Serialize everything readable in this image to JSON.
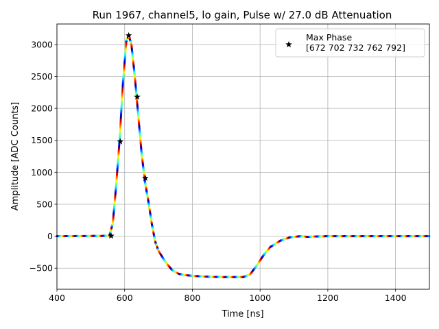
{
  "chart_data": {
    "type": "scatter",
    "title": "Run 1967, channel5, lo gain, Pulse w/ 27.0 dB Attenuation",
    "xlabel": "Time [ns]",
    "ylabel": "Amplitude [ADC Counts]",
    "xlim": [
      400,
      1500
    ],
    "ylim": [
      -830,
      3320
    ],
    "xticks": [
      400,
      600,
      800,
      1000,
      1200,
      1400
    ],
    "yticks": [
      -500,
      0,
      500,
      1000,
      1500,
      2000,
      2500,
      3000
    ],
    "grid": true,
    "legend_position": "top-right",
    "colormap": "jet",
    "pulse_series": {
      "style": "colored-dots",
      "x": [
        400,
        555,
        565,
        575,
        585,
        595,
        605,
        612,
        620,
        630,
        640,
        650,
        660,
        670,
        680,
        690,
        700,
        720,
        740,
        760,
        780,
        800,
        850,
        900,
        950,
        970,
        990,
        1010,
        1030,
        1060,
        1090,
        1120,
        1140,
        1160,
        1200,
        1300,
        1400,
        1500
      ],
      "y": [
        0,
        5,
        200,
        800,
        1500,
        2400,
        3050,
        3140,
        3000,
        2500,
        1900,
        1300,
        850,
        550,
        200,
        -80,
        -230,
        -400,
        -530,
        -590,
        -610,
        -620,
        -635,
        -640,
        -640,
        -600,
        -460,
        -300,
        -170,
        -70,
        -15,
        0,
        -10,
        -5,
        0,
        0,
        0,
        0
      ]
    },
    "series": [
      {
        "name": "Max Phase\n [672 702 732 762 792]",
        "marker": "star",
        "color": "#000000",
        "x": [
          560,
          587,
          612,
          637,
          661
        ],
        "y": [
          5,
          1480,
          3140,
          2180,
          910
        ]
      }
    ]
  }
}
